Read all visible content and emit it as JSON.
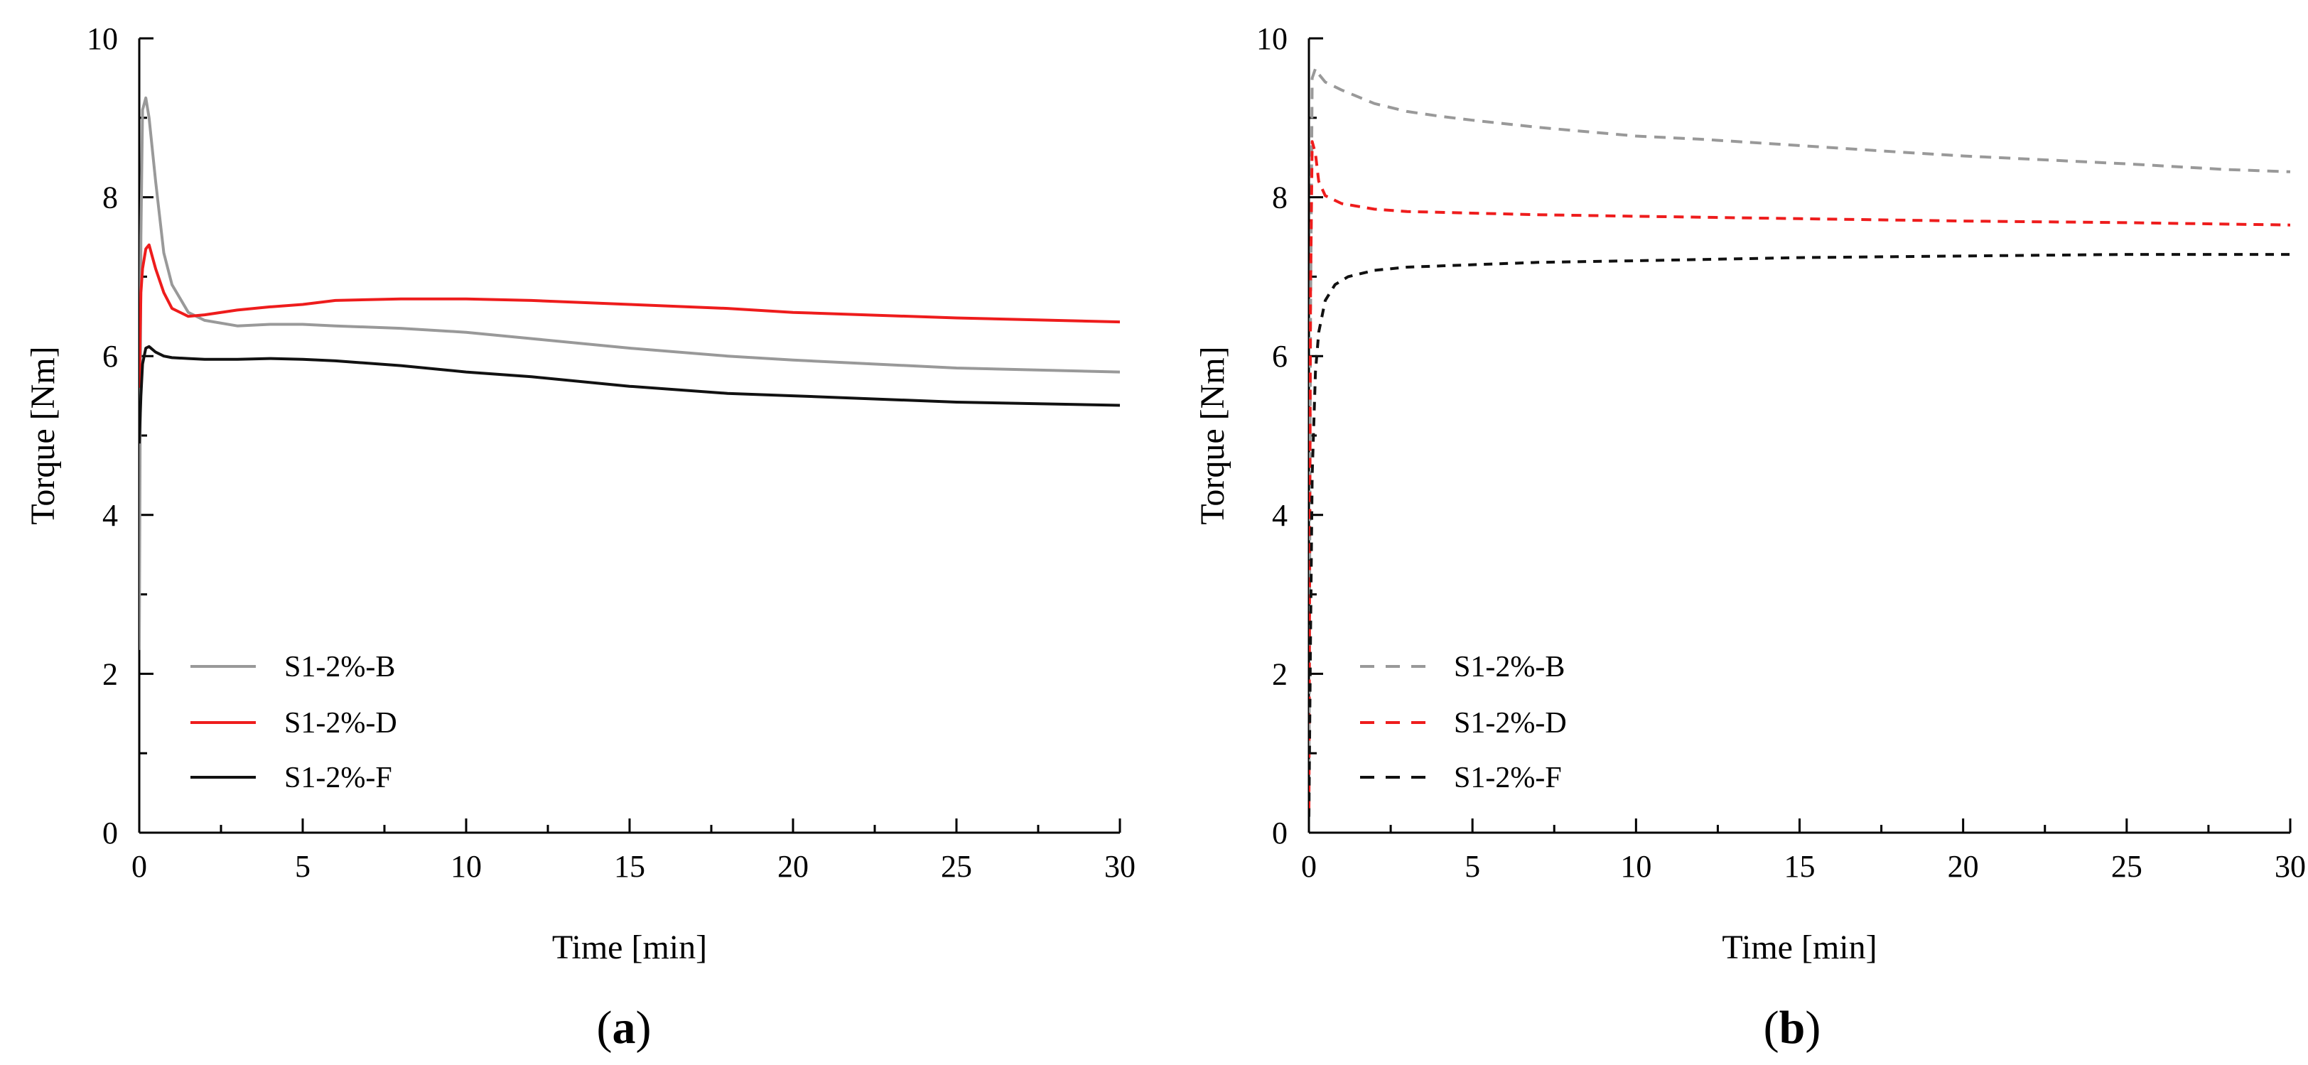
{
  "chart_data": [
    {
      "type": "line",
      "panel_label": {
        "open": "(",
        "letter": "a",
        "close": ")"
      },
      "xlabel": "Time [min]",
      "ylabel": "Torque [Nm]",
      "xlim": [
        0,
        30
      ],
      "ylim": [
        0,
        10
      ],
      "xticks": [
        0,
        5,
        10,
        15,
        20,
        25,
        30
      ],
      "yticks": [
        0,
        2,
        4,
        6,
        8,
        10
      ],
      "grid": false,
      "legend_position": "bottom-left",
      "series": [
        {
          "name": "S1-2%-B",
          "color": "#999999",
          "dash": "solid",
          "x": [
            0,
            0.05,
            0.1,
            0.2,
            0.3,
            0.5,
            0.75,
            1.0,
            1.5,
            2,
            3,
            4,
            5,
            6,
            8,
            10,
            12,
            15,
            18,
            20,
            25,
            30
          ],
          "y": [
            2.3,
            7.5,
            9.1,
            9.25,
            9.0,
            8.2,
            7.3,
            6.9,
            6.55,
            6.45,
            6.38,
            6.4,
            6.4,
            6.38,
            6.35,
            6.3,
            6.22,
            6.1,
            6.0,
            5.95,
            5.85,
            5.8
          ]
        },
        {
          "name": "S1-2%-D",
          "color": "#ee1c1c",
          "dash": "solid",
          "x": [
            0,
            0.05,
            0.1,
            0.2,
            0.3,
            0.5,
            0.75,
            1.0,
            1.5,
            2,
            3,
            4,
            5,
            6,
            8,
            10,
            12,
            15,
            18,
            20,
            25,
            30
          ],
          "y": [
            5.6,
            6.8,
            7.1,
            7.35,
            7.4,
            7.1,
            6.8,
            6.6,
            6.5,
            6.52,
            6.58,
            6.62,
            6.65,
            6.7,
            6.72,
            6.72,
            6.7,
            6.65,
            6.6,
            6.55,
            6.48,
            6.43
          ]
        },
        {
          "name": "S1-2%-F",
          "color": "#111111",
          "dash": "solid",
          "x": [
            0,
            0.05,
            0.1,
            0.2,
            0.3,
            0.5,
            0.75,
            1.0,
            1.5,
            2,
            3,
            4,
            5,
            6,
            8,
            10,
            12,
            15,
            18,
            20,
            25,
            30
          ],
          "y": [
            4.9,
            5.5,
            5.9,
            6.1,
            6.12,
            6.05,
            6.0,
            5.98,
            5.97,
            5.96,
            5.96,
            5.97,
            5.96,
            5.94,
            5.88,
            5.8,
            5.74,
            5.62,
            5.53,
            5.5,
            5.42,
            5.38
          ]
        }
      ]
    },
    {
      "type": "line",
      "panel_label": {
        "open": "(",
        "letter": "b",
        "close": ")"
      },
      "xlabel": "Time [min]",
      "ylabel": "Torque [Nm]",
      "xlim": [
        0,
        30
      ],
      "ylim": [
        0,
        10
      ],
      "xticks": [
        0,
        5,
        10,
        15,
        20,
        25,
        30
      ],
      "yticks": [
        0,
        2,
        4,
        6,
        8,
        10
      ],
      "grid": false,
      "legend_position": "bottom-left",
      "series": [
        {
          "name": "S1-2%-B",
          "color": "#999999",
          "dash": "dashed",
          "x": [
            0,
            0.05,
            0.1,
            0.2,
            0.3,
            0.5,
            1,
            2,
            3,
            4,
            5,
            7,
            10,
            12,
            15,
            18,
            20,
            22,
            25,
            28,
            30
          ],
          "y": [
            0.3,
            6.5,
            9.5,
            9.62,
            9.55,
            9.45,
            9.35,
            9.18,
            9.08,
            9.02,
            8.97,
            8.88,
            8.77,
            8.73,
            8.65,
            8.57,
            8.52,
            8.48,
            8.42,
            8.35,
            8.32
          ]
        },
        {
          "name": "S1-2%-D",
          "color": "#ee1c1c",
          "dash": "dashed",
          "x": [
            0,
            0.05,
            0.1,
            0.2,
            0.3,
            0.5,
            1,
            2,
            3,
            5,
            7,
            10,
            15,
            20,
            25,
            30
          ],
          "y": [
            0.3,
            6.8,
            8.7,
            8.55,
            8.2,
            8.02,
            7.92,
            7.85,
            7.82,
            7.8,
            7.78,
            7.76,
            7.73,
            7.7,
            7.68,
            7.65
          ]
        },
        {
          "name": "S1-2%-F",
          "color": "#111111",
          "dash": "dashed",
          "x": [
            0,
            0.05,
            0.1,
            0.2,
            0.3,
            0.5,
            0.8,
            1.2,
            2,
            3,
            5,
            7,
            10,
            15,
            20,
            25,
            30
          ],
          "y": [
            0.2,
            2.5,
            4.5,
            5.8,
            6.3,
            6.7,
            6.9,
            7.0,
            7.08,
            7.12,
            7.15,
            7.18,
            7.2,
            7.24,
            7.26,
            7.28,
            7.28
          ]
        }
      ]
    }
  ]
}
